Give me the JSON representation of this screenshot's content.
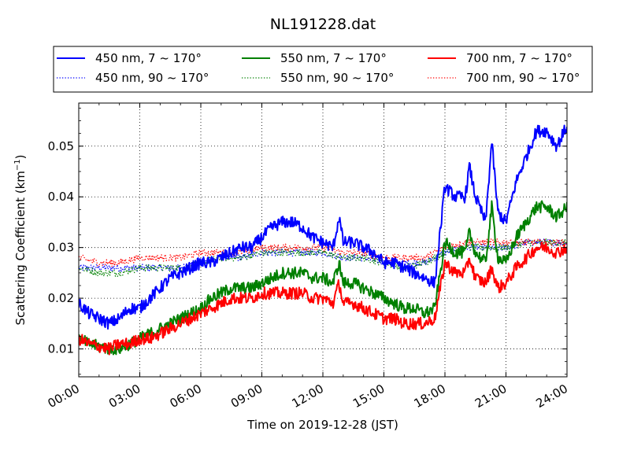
{
  "chart_data": {
    "type": "line",
    "title": "NL191228.dat",
    "xlabel": "Time on 2019-12-28 (JST)",
    "ylabel_main": "Scattering Coefficient (km",
    "ylabel_sup": "−1",
    "ylabel_close": ")",
    "xlim": [
      0,
      24
    ],
    "ylim": [
      0.0045,
      0.0585
    ],
    "x_ticks": [
      0,
      3,
      6,
      9,
      12,
      15,
      18,
      21,
      24
    ],
    "x_tick_labels": [
      "00:00",
      "03:00",
      "06:00",
      "09:00",
      "12:00",
      "15:00",
      "18:00",
      "21:00",
      "24:00"
    ],
    "y_ticks": [
      0.01,
      0.02,
      0.03,
      0.04,
      0.05
    ],
    "y_tick_labels": [
      "0.01",
      "0.02",
      "0.03",
      "0.04",
      "0.05"
    ],
    "grid": true,
    "legend_position": "top",
    "series": [
      {
        "name": "450 nm, 7 ~ 170°",
        "color": "#0000ff",
        "style": "solid",
        "x": [
          0,
          0.5,
          1,
          1.5,
          2,
          2.5,
          3,
          3.5,
          4,
          4.5,
          5,
          5.5,
          6,
          6.5,
          7,
          7.5,
          8,
          8.5,
          9,
          9.5,
          10,
          10.5,
          11,
          11.5,
          12,
          12.5,
          12.8,
          13,
          13.5,
          14,
          14.5,
          15,
          15.5,
          16,
          16.5,
          17,
          17.5,
          18,
          18.5,
          19,
          19.2,
          19.5,
          20,
          20.3,
          20.6,
          21,
          21.5,
          22,
          22.5,
          23,
          23.5,
          24
        ],
        "y": [
          0.019,
          0.017,
          0.016,
          0.015,
          0.016,
          0.018,
          0.018,
          0.02,
          0.022,
          0.024,
          0.025,
          0.026,
          0.027,
          0.027,
          0.028,
          0.029,
          0.03,
          0.03,
          0.032,
          0.034,
          0.035,
          0.035,
          0.034,
          0.032,
          0.031,
          0.03,
          0.036,
          0.031,
          0.031,
          0.03,
          0.029,
          0.027,
          0.027,
          0.026,
          0.025,
          0.024,
          0.023,
          0.042,
          0.04,
          0.04,
          0.046,
          0.04,
          0.035,
          0.051,
          0.037,
          0.035,
          0.043,
          0.048,
          0.053,
          0.053,
          0.05,
          0.054
        ]
      },
      {
        "name": "550 nm, 7 ~ 170°",
        "color": "#008000",
        "style": "solid",
        "x": [
          0,
          0.5,
          1,
          1.5,
          2,
          2.5,
          3,
          3.5,
          4,
          4.5,
          5,
          5.5,
          6,
          6.5,
          7,
          7.5,
          8,
          8.5,
          9,
          9.5,
          10,
          10.5,
          11,
          11.5,
          12,
          12.5,
          12.8,
          13,
          13.5,
          14,
          14.5,
          15,
          15.5,
          16,
          16.5,
          17,
          17.5,
          18,
          18.5,
          19,
          19.2,
          19.5,
          20,
          20.3,
          20.6,
          21,
          21.5,
          22,
          22.5,
          23,
          23.5,
          24
        ],
        "y": [
          0.012,
          0.011,
          0.0105,
          0.01,
          0.01,
          0.011,
          0.012,
          0.013,
          0.014,
          0.015,
          0.016,
          0.017,
          0.018,
          0.02,
          0.021,
          0.022,
          0.022,
          0.022,
          0.023,
          0.024,
          0.025,
          0.025,
          0.025,
          0.024,
          0.024,
          0.023,
          0.027,
          0.023,
          0.023,
          0.022,
          0.021,
          0.02,
          0.019,
          0.018,
          0.018,
          0.017,
          0.018,
          0.031,
          0.029,
          0.029,
          0.033,
          0.029,
          0.027,
          0.038,
          0.028,
          0.027,
          0.032,
          0.035,
          0.038,
          0.038,
          0.036,
          0.038
        ]
      },
      {
        "name": "700 nm, 7 ~ 170°",
        "color": "#ff0000",
        "style": "solid",
        "x": [
          0,
          0.5,
          1,
          1.5,
          2,
          2.5,
          3,
          3.5,
          4,
          4.5,
          5,
          5.5,
          6,
          6.5,
          7,
          7.5,
          8,
          8.5,
          9,
          9.5,
          10,
          10.5,
          11,
          11.5,
          12,
          12.5,
          12.8,
          13,
          13.5,
          14,
          14.5,
          15,
          15.5,
          16,
          16.5,
          17,
          17.5,
          18,
          18.5,
          19,
          19.2,
          19.5,
          20,
          20.3,
          20.6,
          21,
          21.5,
          22,
          22.5,
          23,
          23.5,
          24
        ],
        "y": [
          0.012,
          0.011,
          0.0105,
          0.01,
          0.011,
          0.011,
          0.012,
          0.012,
          0.013,
          0.014,
          0.015,
          0.016,
          0.017,
          0.018,
          0.019,
          0.02,
          0.02,
          0.02,
          0.021,
          0.021,
          0.021,
          0.021,
          0.021,
          0.02,
          0.02,
          0.019,
          0.023,
          0.019,
          0.019,
          0.018,
          0.017,
          0.016,
          0.016,
          0.015,
          0.015,
          0.015,
          0.016,
          0.027,
          0.025,
          0.025,
          0.028,
          0.024,
          0.023,
          0.026,
          0.022,
          0.023,
          0.026,
          0.028,
          0.03,
          0.03,
          0.029,
          0.03
        ]
      },
      {
        "name": "450 nm, 90 ~ 170°",
        "color": "#0000ff",
        "style": "dotted",
        "x": [
          0,
          1,
          2,
          3,
          4,
          5,
          6,
          7,
          8,
          9,
          10,
          11,
          12,
          13,
          14,
          15,
          16,
          17,
          18,
          19,
          20,
          21,
          22,
          23,
          24
        ],
        "y": [
          0.026,
          0.026,
          0.026,
          0.026,
          0.026,
          0.026,
          0.027,
          0.028,
          0.028,
          0.029,
          0.029,
          0.029,
          0.029,
          0.028,
          0.028,
          0.027,
          0.027,
          0.027,
          0.029,
          0.03,
          0.03,
          0.03,
          0.031,
          0.031,
          0.031
        ]
      },
      {
        "name": "550 nm, 90 ~ 170°",
        "color": "#008000",
        "style": "dotted",
        "x": [
          0,
          1,
          2,
          3,
          4,
          5,
          6,
          7,
          8,
          9,
          10,
          11,
          12,
          13,
          14,
          15,
          16,
          17,
          18,
          19,
          20,
          21,
          22,
          23,
          24
        ],
        "y": [
          0.026,
          0.025,
          0.025,
          0.026,
          0.026,
          0.026,
          0.027,
          0.028,
          0.028,
          0.029,
          0.029,
          0.029,
          0.029,
          0.028,
          0.028,
          0.027,
          0.026,
          0.027,
          0.029,
          0.03,
          0.03,
          0.03,
          0.031,
          0.031,
          0.031
        ]
      },
      {
        "name": "700 nm, 90 ~ 170°",
        "color": "#ff0000",
        "style": "dotted",
        "x": [
          0,
          1,
          2,
          3,
          4,
          5,
          6,
          7,
          8,
          9,
          10,
          11,
          12,
          13,
          14,
          15,
          16,
          17,
          18,
          19,
          20,
          21,
          22,
          23,
          24
        ],
        "y": [
          0.028,
          0.027,
          0.027,
          0.028,
          0.028,
          0.028,
          0.029,
          0.029,
          0.029,
          0.03,
          0.03,
          0.03,
          0.03,
          0.029,
          0.029,
          0.028,
          0.028,
          0.028,
          0.03,
          0.031,
          0.031,
          0.031,
          0.031,
          0.031,
          0.031
        ]
      }
    ]
  }
}
